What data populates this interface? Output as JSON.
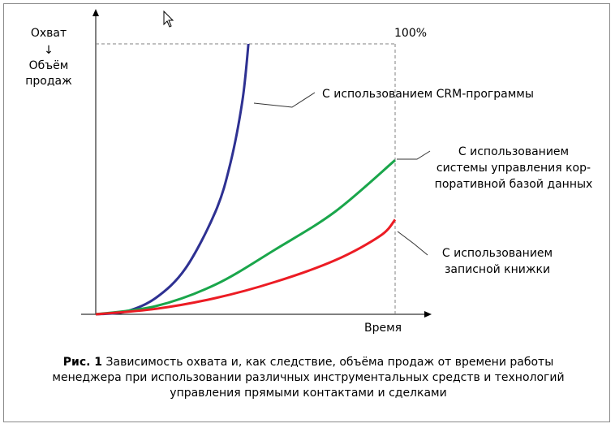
{
  "chart_data": {
    "type": "line",
    "title": "",
    "ylabel_lines": [
      "Охват",
      "↓",
      "Объём",
      "продаж"
    ],
    "xlabel": "Время",
    "max_label": "100%",
    "xlim": [
      0,
      1
    ],
    "ylim": [
      0,
      1
    ],
    "grid": false,
    "series": [
      {
        "name": "С использованием CRM-программы",
        "color": "#2e3192",
        "x": [
          0,
          0.1,
          0.2,
          0.3,
          0.4,
          0.45,
          0.49,
          0.51
        ],
        "y": [
          0,
          0.01,
          0.06,
          0.17,
          0.38,
          0.56,
          0.79,
          1.0
        ]
      },
      {
        "name": "С использованием системы управления корпоративной базой данных",
        "color": "#1aa64b",
        "x": [
          0,
          0.2,
          0.4,
          0.6,
          0.8,
          1.0
        ],
        "y": [
          0,
          0.03,
          0.11,
          0.24,
          0.38,
          0.57
        ]
      },
      {
        "name": "С использованием записной книжки",
        "color": "#ec1c24",
        "x": [
          0,
          0.2,
          0.4,
          0.6,
          0.8,
          0.95,
          1.0
        ],
        "y": [
          0,
          0.02,
          0.06,
          0.12,
          0.2,
          0.29,
          0.35
        ]
      }
    ],
    "annotations": [
      {
        "series": 0,
        "lines": [
          "С использованием CRM-программы"
        ]
      },
      {
        "series": 1,
        "lines": [
          "С использованием",
          "системы управления кор-",
          "поративной базой данных"
        ]
      },
      {
        "series": 2,
        "lines": [
          "С использованием",
          "записной книжки"
        ]
      }
    ]
  },
  "caption": {
    "label": "Рис. 1",
    "text": " Зависимость охвата и, как следствие, объёма продаж от времени работы менеджера при использовании различных инструментальных средств и технологий управления прямыми контактами и сделками"
  },
  "cursor_icon": "mouse-pointer-icon",
  "colors": {
    "axis": "#000000",
    "dash": "#808080",
    "leader": "#333333",
    "frame": "#8a8a8a"
  }
}
